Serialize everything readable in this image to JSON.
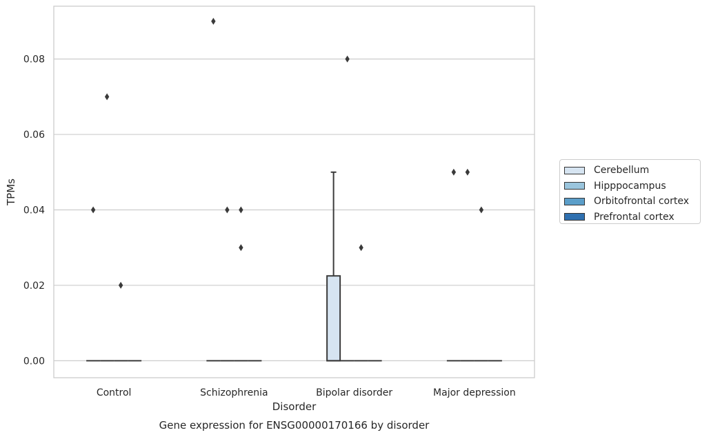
{
  "chart_data": {
    "type": "box",
    "xlabel": "Disorder",
    "ylabel": "TPMs",
    "caption": "Gene expression for ENSG00000170166 by disorder",
    "ylim": [
      -0.0045,
      0.094
    ],
    "yticks": [
      0.0,
      0.02,
      0.04,
      0.06,
      0.08
    ],
    "ytick_labels": [
      "0.00",
      "0.02",
      "0.04",
      "0.06",
      "0.08"
    ],
    "grid": "horizontal",
    "legend_position": "outside-right",
    "categories": [
      "Control",
      "Schizophrenia",
      "Bipolar disorder",
      "Major depression"
    ],
    "series": [
      {
        "name": "Cerebellum",
        "color": "#d6e4f1"
      },
      {
        "name": "Hipppocampus",
        "color": "#9ac5dd"
      },
      {
        "name": "Orbitofrontal cortex",
        "color": "#5b9ec9"
      },
      {
        "name": "Prefrontal cortex",
        "color": "#2f70b0"
      }
    ],
    "boxes": [
      {
        "category": 0,
        "series": 0,
        "q1": 0,
        "median": 0,
        "q3": 0,
        "whisker_low": 0,
        "whisker_high": 0,
        "outliers": [
          0.04
        ]
      },
      {
        "category": 0,
        "series": 1,
        "q1": 0,
        "median": 0,
        "q3": 0,
        "whisker_low": 0,
        "whisker_high": 0,
        "outliers": [
          0.07
        ]
      },
      {
        "category": 0,
        "series": 2,
        "q1": 0,
        "median": 0,
        "q3": 0,
        "whisker_low": 0,
        "whisker_high": 0,
        "outliers": [
          0.02
        ]
      },
      {
        "category": 0,
        "series": 3,
        "q1": 0,
        "median": 0,
        "q3": 0,
        "whisker_low": 0,
        "whisker_high": 0,
        "outliers": []
      },
      {
        "category": 1,
        "series": 0,
        "q1": 0,
        "median": 0,
        "q3": 0,
        "whisker_low": 0,
        "whisker_high": 0,
        "outliers": [
          0.09
        ]
      },
      {
        "category": 1,
        "series": 1,
        "q1": 0,
        "median": 0,
        "q3": 0,
        "whisker_low": 0,
        "whisker_high": 0,
        "outliers": [
          0.04
        ]
      },
      {
        "category": 1,
        "series": 2,
        "q1": 0,
        "median": 0,
        "q3": 0,
        "whisker_low": 0,
        "whisker_high": 0,
        "outliers": [
          0.04,
          0.03
        ]
      },
      {
        "category": 1,
        "series": 3,
        "q1": 0,
        "median": 0,
        "q3": 0,
        "whisker_low": 0,
        "whisker_high": 0,
        "outliers": []
      },
      {
        "category": 2,
        "series": 0,
        "q1": 0,
        "median": 0,
        "q3": 0.0225,
        "whisker_low": 0,
        "whisker_high": 0.05,
        "outliers": []
      },
      {
        "category": 2,
        "series": 1,
        "q1": 0,
        "median": 0,
        "q3": 0,
        "whisker_low": 0,
        "whisker_high": 0,
        "outliers": [
          0.08
        ]
      },
      {
        "category": 2,
        "series": 2,
        "q1": 0,
        "median": 0,
        "q3": 0,
        "whisker_low": 0,
        "whisker_high": 0,
        "outliers": [
          0.03
        ]
      },
      {
        "category": 2,
        "series": 3,
        "q1": 0,
        "median": 0,
        "q3": 0,
        "whisker_low": 0,
        "whisker_high": 0,
        "outliers": []
      },
      {
        "category": 3,
        "series": 0,
        "q1": 0,
        "median": 0,
        "q3": 0,
        "whisker_low": 0,
        "whisker_high": 0,
        "outliers": [
          0.05
        ]
      },
      {
        "category": 3,
        "series": 1,
        "q1": 0,
        "median": 0,
        "q3": 0,
        "whisker_low": 0,
        "whisker_high": 0,
        "outliers": [
          0.05
        ]
      },
      {
        "category": 3,
        "series": 2,
        "q1": 0,
        "median": 0,
        "q3": 0,
        "whisker_low": 0,
        "whisker_high": 0,
        "outliers": [
          0.04
        ]
      },
      {
        "category": 3,
        "series": 3,
        "q1": 0,
        "median": 0,
        "q3": 0,
        "whisker_low": 0,
        "whisker_high": 0,
        "outliers": []
      }
    ]
  }
}
